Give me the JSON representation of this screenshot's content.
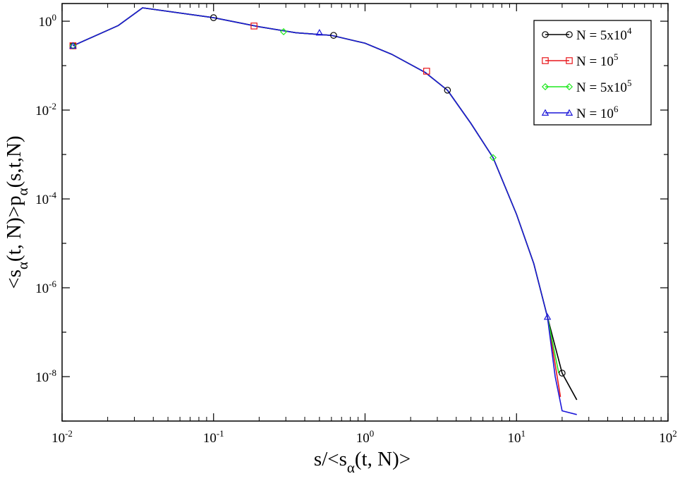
{
  "chart_data": {
    "type": "line",
    "x_scale": "log",
    "y_scale": "log",
    "xlim": [
      0.01,
      100
    ],
    "ylim": [
      1e-09,
      2.5
    ],
    "x_ticks": [
      {
        "base": "10",
        "exp": "-2",
        "value": 0.01
      },
      {
        "base": "10",
        "exp": "-1",
        "value": 0.1
      },
      {
        "base": "10",
        "exp": "0",
        "value": 1
      },
      {
        "base": "10",
        "exp": "1",
        "value": 10
      },
      {
        "base": "10",
        "exp": "2",
        "value": 100
      }
    ],
    "y_ticks": [
      {
        "base": "10",
        "exp": "0",
        "value": 1
      },
      {
        "base": "10",
        "exp": "-2",
        "value": 0.01
      },
      {
        "base": "10",
        "exp": "-4",
        "value": 0.0001
      },
      {
        "base": "10",
        "exp": "-6",
        "value": 1e-06
      },
      {
        "base": "10",
        "exp": "-8",
        "value": 1e-08
      }
    ],
    "xlabel": {
      "pre": "s/<s",
      "sub": "α",
      "post": "(t, N)>"
    },
    "ylabel": {
      "pre": "<s",
      "sub1": "α",
      "mid": "(t, N)>p",
      "sub2": "α",
      "post": "(s,t,N)"
    },
    "legend_position": "top-right",
    "grid": false,
    "series": [
      {
        "legend": {
          "pre": "N = 5x10",
          "sup": "4"
        },
        "color": "#000000",
        "marker": "circle",
        "x": [
          0.0118,
          0.0235,
          0.034,
          0.1,
          0.2,
          0.35,
          0.6,
          1.0,
          1.5,
          2.5,
          3.5,
          5.0,
          7.0,
          10.0,
          13.0,
          16.0,
          20.0,
          25.0
        ],
        "y": [
          0.28,
          0.8,
          2.0,
          1.2,
          0.75,
          0.55,
          0.48,
          0.32,
          0.18,
          0.07,
          0.028,
          0.005,
          0.00085,
          4.5e-05,
          3.5e-06,
          2.2e-07,
          1.2e-08,
          3e-09
        ],
        "marker_x": [
          0.0118,
          0.1,
          0.62,
          3.5,
          20.0
        ],
        "marker_y": [
          0.28,
          1.2,
          0.48,
          0.028,
          1.2e-08
        ]
      },
      {
        "legend": {
          "pre": "N = 10",
          "sup": "5"
        },
        "color": "#e8161b",
        "marker": "square",
        "x": [
          0.0118,
          0.0235,
          0.034,
          0.1,
          0.2,
          0.35,
          0.6,
          1.0,
          1.5,
          2.5,
          3.5,
          5.0,
          7.0,
          10.0,
          13.0,
          16.0,
          19.5
        ],
        "y": [
          0.28,
          0.8,
          2.0,
          1.2,
          0.75,
          0.55,
          0.48,
          0.32,
          0.18,
          0.07,
          0.028,
          0.005,
          0.00085,
          4.5e-05,
          3.5e-06,
          2.2e-07,
          3.5e-09
        ],
        "marker_x": [
          0.0118,
          0.185,
          2.55
        ],
        "marker_y": [
          0.28,
          0.78,
          0.075
        ]
      },
      {
        "legend": {
          "pre": "N = 5x10",
          "sup": "5"
        },
        "color": "#1fe81f",
        "marker": "diamond",
        "x": [
          0.0118,
          0.0235,
          0.034,
          0.1,
          0.2,
          0.35,
          0.6,
          1.0,
          1.5,
          2.5,
          3.5,
          5.0,
          7.0,
          10.0,
          13.0,
          16.0,
          19.0
        ],
        "y": [
          0.28,
          0.8,
          2.0,
          1.2,
          0.75,
          0.55,
          0.48,
          0.32,
          0.18,
          0.07,
          0.028,
          0.005,
          0.00085,
          4.5e-05,
          3.5e-06,
          2.2e-07,
          1.2e-08
        ],
        "marker_x": [
          0.0118,
          0.29,
          7.0
        ],
        "marker_y": [
          0.28,
          0.58,
          0.00085
        ]
      },
      {
        "legend": {
          "pre": "N = 10",
          "sup": "6"
        },
        "color": "#1c17d9",
        "marker": "triangle",
        "x": [
          0.0118,
          0.0235,
          0.034,
          0.1,
          0.2,
          0.35,
          0.6,
          1.0,
          1.5,
          2.5,
          3.5,
          5.0,
          7.0,
          10.0,
          13.0,
          16.0,
          18.0,
          20.0,
          25.0
        ],
        "y": [
          0.28,
          0.8,
          2.0,
          1.2,
          0.75,
          0.55,
          0.48,
          0.32,
          0.18,
          0.07,
          0.028,
          0.005,
          0.00085,
          4.5e-05,
          3.5e-06,
          2.2e-07,
          1e-08,
          1.7e-09,
          1.4e-09
        ],
        "marker_x": [
          0.0118,
          0.5,
          16.0
        ],
        "marker_y": [
          0.28,
          0.55,
          2.2e-07
        ]
      }
    ]
  }
}
